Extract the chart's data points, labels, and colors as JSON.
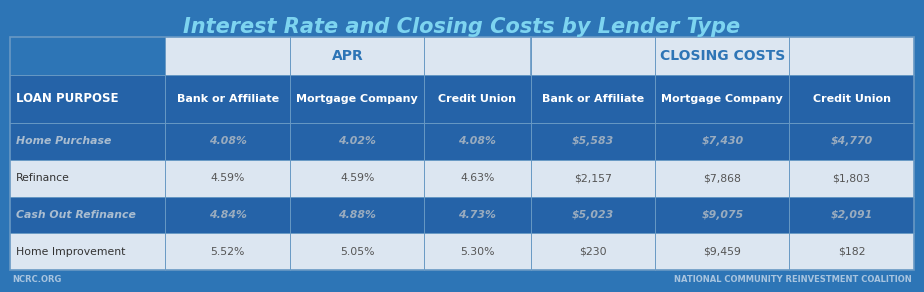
{
  "title": "Interest Rate and Closing Costs by Lender Type",
  "bg_color": "#2d75b6",
  "col_headers": [
    "LOAN PURPOSE",
    "Bank or Affiliate",
    "Mortgage Company",
    "Credit Union",
    "Bank or Affiliate",
    "Mortgage Company",
    "Credit Union"
  ],
  "group_headers": [
    "APR",
    "CLOSING COSTS"
  ],
  "rows": [
    [
      "Home Purchase",
      "4.08%",
      "4.02%",
      "4.08%",
      "$5,583",
      "$7,430",
      "$4,770"
    ],
    [
      "Refinance",
      "4.59%",
      "4.59%",
      "4.63%",
      "$2,157",
      "$7,868",
      "$1,803"
    ],
    [
      "Cash Out Refinance",
      "4.84%",
      "4.88%",
      "4.73%",
      "$5,023",
      "$9,075",
      "$2,091"
    ],
    [
      "Home Improvement",
      "5.52%",
      "5.05%",
      "5.30%",
      "$230",
      "$9,459",
      "$182"
    ]
  ],
  "footer_left": "NCRC.ORG",
  "footer_right": "NATIONAL COMMUNITY REINVESTMENT COALITION",
  "title_color": "#7dd4f0",
  "title_fontsize": 15,
  "group_header_text_color": "#2e75b6",
  "group_header_bg": "#dce6f1",
  "col_header_bg": "#2563a8",
  "col_header_text_color": "#ffffff",
  "row_dark_bg": "#2563a8",
  "row_light_bg": "#dce6f1",
  "row_dark_text": "#9aacbf",
  "row_light_text": "#555555",
  "row_dark_loan_text": "#aabdd0",
  "row_light_loan_text": "#333333",
  "border_color": "#6899c4",
  "footer_color": "#a8c4df"
}
